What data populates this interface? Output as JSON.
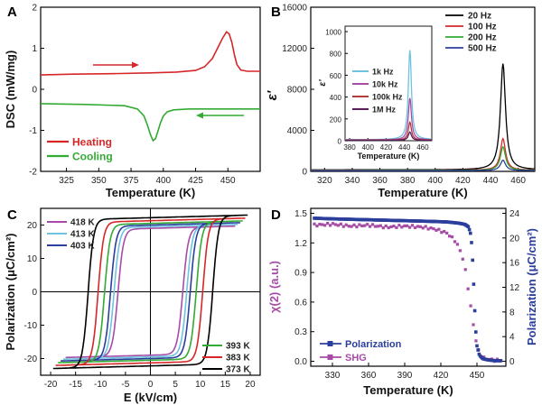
{
  "chart_data": [
    {
      "panel": "A",
      "type": "line",
      "xlabel": "Temperature (K)",
      "ylabel": "DSC (mW/mg)",
      "xlim": [
        305,
        475
      ],
      "ylim": [
        -2,
        2
      ],
      "xticks": [
        "325",
        "350",
        "375",
        "400",
        "425",
        "450"
      ],
      "yticks": [
        "-2",
        "-1",
        "0",
        "1",
        "2"
      ],
      "legend_position": "bottom-left",
      "series": [
        {
          "name": "Heating",
          "color": "#d62728",
          "x": [
            305,
            330,
            360,
            390,
            410,
            425,
            432,
            438,
            442,
            446,
            449,
            451,
            453,
            455,
            457,
            460,
            465,
            470,
            475
          ],
          "y": [
            0.35,
            0.37,
            0.38,
            0.4,
            0.42,
            0.46,
            0.55,
            0.75,
            1.0,
            1.25,
            1.4,
            1.35,
            1.15,
            0.85,
            0.6,
            0.47,
            0.44,
            0.44,
            0.44
          ]
        },
        {
          "name": "Cooling",
          "color": "#33aa33",
          "x": [
            305,
            340,
            370,
            380,
            385,
            388,
            390,
            392,
            394,
            396,
            398,
            400,
            403,
            408,
            420,
            440,
            460,
            475
          ],
          "y": [
            -0.35,
            -0.37,
            -0.4,
            -0.48,
            -0.65,
            -0.9,
            -1.1,
            -1.25,
            -1.2,
            -1.0,
            -0.8,
            -0.65,
            -0.55,
            -0.5,
            -0.48,
            -0.48,
            -0.48,
            -0.48
          ]
        }
      ],
      "arrows": [
        {
          "dir": "right",
          "color": "#d62728"
        },
        {
          "dir": "left",
          "color": "#33aa33"
        }
      ]
    },
    {
      "panel": "B",
      "type": "line",
      "xlabel": "Temperature (K)",
      "ylabel": "ε'",
      "xlim": [
        310,
        472
      ],
      "ylim": [
        0,
        16000
      ],
      "xticks": [
        "320",
        "340",
        "360",
        "380",
        "400",
        "420",
        "440",
        "460"
      ],
      "yticks": [
        "0",
        "4000",
        "8000",
        "12000",
        "16000"
      ],
      "legend_position": "top-right",
      "series": [
        {
          "name": "20 Hz",
          "color": "#000000",
          "peak": 10500,
          "base": 150,
          "width": 2.2
        },
        {
          "name": "100 Hz",
          "color": "#d62728",
          "peak": 3200,
          "base": 120,
          "width": 2.2
        },
        {
          "name": "200 Hz",
          "color": "#33aa33",
          "peak": 2400,
          "base": 100,
          "width": 2.2
        },
        {
          "name": "500 Hz",
          "color": "#2b3e9c",
          "peak": 1100,
          "base": 80,
          "width": 2.2
        }
      ],
      "inset": {
        "ylabel": "ε'",
        "xlabel": "Temperature (K)",
        "xlim": [
          375,
          470
        ],
        "ylim": [
          0,
          1050
        ],
        "xticks": [
          "380",
          "400",
          "420",
          "440",
          "460"
        ],
        "yticks": [
          "0",
          "200",
          "400",
          "600",
          "800",
          "1000"
        ],
        "series": [
          {
            "name": "1k Hz",
            "color": "#6fc3df",
            "peak": 830,
            "base": 10,
            "width": 2.0
          },
          {
            "name": "10k Hz",
            "color": "#a64ca6",
            "peak": 390,
            "base": 8,
            "width": 2.0
          },
          {
            "name": "100k Hz",
            "color": "#b03c3c",
            "peak": 170,
            "base": 6,
            "width": 2.0
          },
          {
            "name": "1M Hz",
            "color": "#5a1e5a",
            "peak": 80,
            "base": 4,
            "width": 2.0
          }
        ]
      }
    },
    {
      "panel": "C",
      "type": "line",
      "xlabel": "E (kV/cm)",
      "ylabel": "Polarization (μC/cm²)",
      "xlim": [
        -22,
        22
      ],
      "ylim": [
        -25,
        25
      ],
      "xticks": [
        "-20",
        "-15",
        "-10",
        "-5",
        "0",
        "5",
        "10",
        "15",
        "20"
      ],
      "yticks": [
        "-20",
        "-10",
        "0",
        "10",
        "20"
      ],
      "series": [
        {
          "name": "418 K",
          "color": "#a64ca6",
          "ec": 6.5,
          "ps": 19.0,
          "emax": 17
        },
        {
          "name": "413 K",
          "color": "#6fc3df",
          "ec": 7.3,
          "ps": 19.5,
          "emax": 17.5
        },
        {
          "name": "403 K",
          "color": "#2b3e9c",
          "ec": 8.0,
          "ps": 20.0,
          "emax": 18
        },
        {
          "name": "393 K",
          "color": "#33aa33",
          "ec": 9.2,
          "ps": 20.5,
          "emax": 18.5
        },
        {
          "name": "383 K",
          "color": "#d62728",
          "ec": 10.5,
          "ps": 21.3,
          "emax": 19
        },
        {
          "name": "373 K",
          "color": "#000000",
          "ec": 12.5,
          "ps": 22.2,
          "emax": 19.5
        }
      ]
    },
    {
      "panel": "D",
      "type": "scatter",
      "xlabel": "Temperature (K)",
      "ylabel": "χ(2) (a.u.)",
      "ylabel_right": "Polarization (μC/cm²)",
      "xlim": [
        312,
        474
      ],
      "ylim": [
        -0.05,
        1.55
      ],
      "ylim_right": [
        -0.8,
        24.8
      ],
      "xticks": [
        "330",
        "360",
        "390",
        "420",
        "450"
      ],
      "yticks": [
        "0.0",
        "0.3",
        "0.6",
        "0.9",
        "1.2",
        "1.5"
      ],
      "yticks_right": [
        "0",
        "4",
        "8",
        "12",
        "16",
        "20",
        "24"
      ],
      "series": [
        {
          "name": "Polarization",
          "color": "#2b3e9c",
          "axis": "right",
          "x": [
            315,
            330,
            350,
            370,
            390,
            410,
            425,
            435,
            440,
            443,
            445,
            446,
            447,
            448,
            449,
            450,
            452,
            455,
            460,
            465,
            470
          ],
          "y": [
            23.2,
            23.1,
            23.0,
            22.9,
            22.8,
            22.7,
            22.6,
            22.4,
            22.2,
            21.8,
            20.5,
            18.0,
            14.0,
            9.0,
            5.0,
            2.5,
            1.0,
            0.4,
            0.2,
            0.1,
            0.1
          ]
        },
        {
          "name": "SHG",
          "color": "#a64ca6",
          "axis": "left",
          "x": [
            315,
            330,
            345,
            360,
            375,
            390,
            405,
            415,
            425,
            432,
            437,
            440,
            442,
            444,
            446,
            448,
            450,
            453,
            456,
            460,
            465,
            470
          ],
          "y": [
            1.38,
            1.39,
            1.37,
            1.38,
            1.36,
            1.37,
            1.36,
            1.34,
            1.3,
            1.22,
            1.1,
            0.95,
            0.8,
            0.62,
            0.45,
            0.3,
            0.15,
            0.06,
            0.03,
            0.02,
            0.01,
            0.01
          ]
        }
      ],
      "legend_position": "bottom-left"
    }
  ]
}
